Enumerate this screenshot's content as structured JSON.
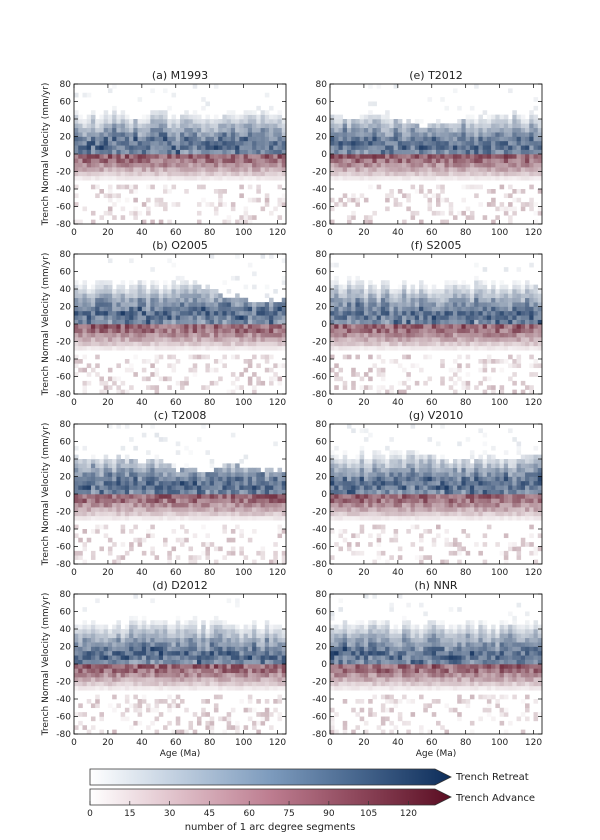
{
  "shared": {
    "ylabel": "Trench Normal Velocity (mm/yr)",
    "xlabel": "Age (Ma)",
    "x_ticks": [
      0,
      20,
      40,
      60,
      80,
      100,
      120
    ],
    "y_ticks": [
      80,
      60,
      40,
      20,
      0,
      -20,
      -40,
      -60,
      -80
    ],
    "xlim": [
      0,
      125
    ],
    "ylim": [
      -80,
      80
    ]
  },
  "colorbar": {
    "retreat_label": "Trench Retreat",
    "advance_label": "Trench Advance",
    "ticks": [
      0,
      15,
      30,
      45,
      60,
      75,
      90,
      105,
      120
    ],
    "label": "number of 1 arc degree segments",
    "range": [
      0,
      130
    ],
    "retreat_color": "#0d2d5a",
    "advance_color": "#5a0d22"
  },
  "chart_data": [
    {
      "type": "heatmap",
      "title": "(a) M1993"
    },
    {
      "type": "heatmap",
      "title": "(e) T2012"
    },
    {
      "type": "heatmap",
      "title": "(b) O2005"
    },
    {
      "type": "heatmap",
      "title": "(f) S2005"
    },
    {
      "type": "heatmap",
      "title": "(c) T2008"
    },
    {
      "type": "heatmap",
      "title": "(g) V2010"
    },
    {
      "type": "heatmap",
      "title": "(d) D2012"
    },
    {
      "type": "heatmap",
      "title": "(h) NNR"
    }
  ]
}
